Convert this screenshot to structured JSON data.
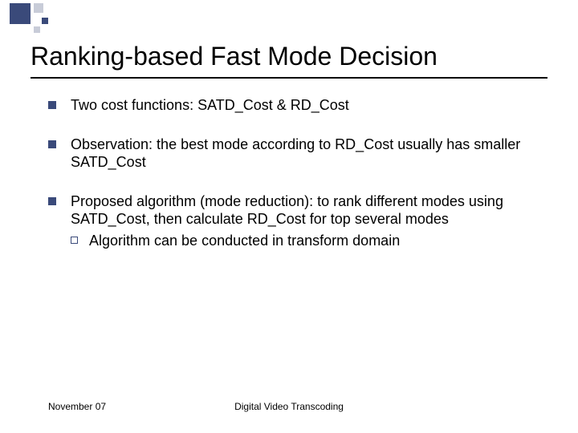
{
  "decoration": {
    "big_square_color": "#3a4a7a",
    "light_square_color": "#c8ccd8"
  },
  "slide": {
    "title": "Ranking-based Fast Mode Decision",
    "title_fontsize": 32,
    "underline_color": "#000000"
  },
  "bullets": [
    {
      "text": "Two cost functions: SATD_Cost & RD_Cost"
    },
    {
      "text": "Observation: the best mode according to RD_Cost usually has smaller SATD_Cost"
    },
    {
      "text": "Proposed algorithm (mode reduction): to rank different modes using SATD_Cost, then calculate RD_Cost for top several modes",
      "sub": [
        {
          "text": "Algorithm can be conducted in transform domain"
        }
      ]
    }
  ],
  "bullet_style": {
    "marker_color": "#3a4a7a",
    "marker_size": 10,
    "sub_marker_border": "#3a4a7a",
    "text_fontsize": 18,
    "text_color": "#000000"
  },
  "footer": {
    "date": "November 07",
    "center": "Digital Video Transcoding",
    "fontsize": 12
  }
}
